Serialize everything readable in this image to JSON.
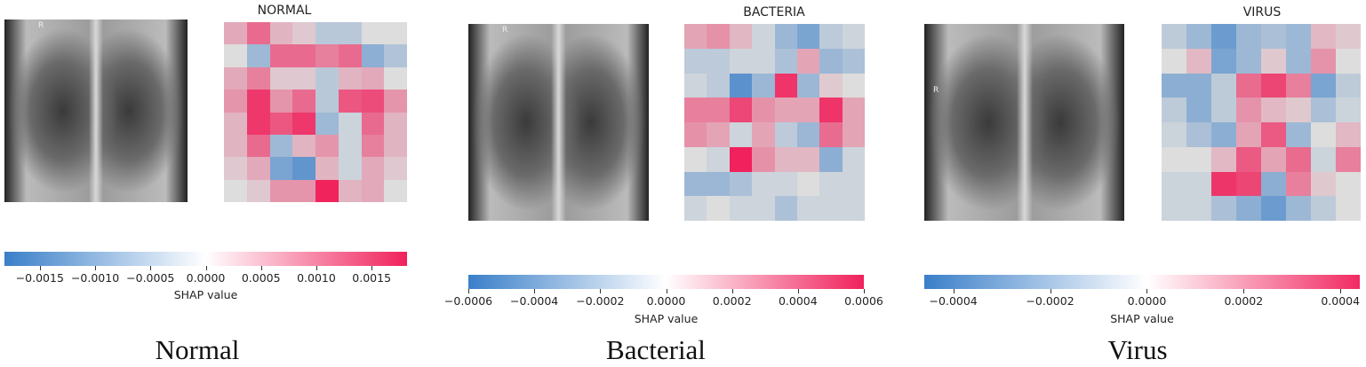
{
  "colors": {
    "negative": "#3a7fc9",
    "zero": "#ffffff",
    "positive": "#f0215c"
  },
  "panels": [
    {
      "title": "NORMAL",
      "caption": "Normal",
      "colorbar_label": "SHAP value",
      "range": [
        -0.00182,
        0.00182
      ],
      "ticks": [
        "−0.0015",
        "−0.0010",
        "−0.0005",
        "0.0000",
        "0.0005",
        "0.0010",
        "0.0015"
      ],
      "tick_values": [
        -0.0015,
        -0.001,
        -0.0005,
        0,
        0.0005,
        0.001,
        0.0015
      ],
      "xray_marker": "R",
      "values": [
        [
          0.0005,
          0.0011,
          0.0004,
          0.0002,
          -0.0004,
          -0.0004,
          0,
          0
        ],
        [
          0,
          -0.0007,
          0.0011,
          0.0011,
          0.0009,
          0.0011,
          -0.0009,
          -0.0005
        ],
        [
          0.0005,
          0.0009,
          0.0002,
          0.0002,
          -0.0004,
          0.0004,
          0.0005,
          0
        ],
        [
          0.0007,
          0.0016,
          0.0007,
          0.0011,
          -0.0004,
          0.0013,
          0.0014,
          0.0007
        ],
        [
          0.0004,
          0.0016,
          0.0013,
          0.0016,
          -0.0007,
          -0.0002,
          0.0011,
          0.0004
        ],
        [
          0.0004,
          0.0011,
          -0.0007,
          0.0004,
          0.0007,
          -0.0002,
          0.0009,
          0.0004
        ],
        [
          0.0002,
          0.0005,
          -0.0011,
          -0.0014,
          0.0004,
          -0.0002,
          0.0005,
          0.0002
        ],
        [
          0,
          0.0002,
          0.0007,
          0.0007,
          0.0018,
          0.0004,
          0.0005,
          0
        ]
      ]
    },
    {
      "title": "BACTERIA",
      "caption": "Bacterial",
      "colorbar_label": "SHAP value",
      "range": [
        -0.0006,
        0.0006
      ],
      "ticks": [
        "−0.0006",
        "−0.0004",
        "−0.0002",
        "0.0000",
        "0.0002",
        "0.0004",
        "0.0006"
      ],
      "tick_values": [
        -0.0006,
        -0.0004,
        -0.0002,
        0,
        0.0002,
        0.0004,
        0.0006
      ],
      "xray_marker": "R",
      "values": [
        [
          0.00018,
          0.00024,
          0.00012,
          -6e-05,
          -0.00024,
          -0.00036,
          -0.00012,
          -6e-05
        ],
        [
          -0.00012,
          -0.00012,
          -6e-05,
          -6e-05,
          -0.00018,
          0.00018,
          -0.00024,
          -0.00018
        ],
        [
          -6e-05,
          -0.00012,
          -0.00048,
          -0.00024,
          0.00054,
          -0.00024,
          6e-05,
          0
        ],
        [
          0.0003,
          0.0003,
          0.00048,
          0.00024,
          0.00018,
          0.00018,
          0.00054,
          0.00018
        ],
        [
          0.00024,
          0.00018,
          -6e-05,
          0.00018,
          -0.00012,
          -0.00024,
          0.00036,
          0.00018
        ],
        [
          0,
          -6e-05,
          0.0006,
          0.00024,
          0.00012,
          0.00012,
          -0.0003,
          -6e-05
        ],
        [
          -0.00024,
          -0.00024,
          -0.00018,
          -6e-05,
          -6e-05,
          0,
          -6e-05,
          -6e-05
        ],
        [
          -6e-05,
          0,
          -6e-05,
          -6e-05,
          -0.00018,
          -6e-05,
          -6e-05,
          -6e-05
        ]
      ]
    },
    {
      "title": "VIRUS",
      "caption": "Virus",
      "colorbar_label": "SHAP value",
      "range": [
        -0.00046,
        0.00044
      ],
      "ticks": [
        "−0.0004",
        "−0.0002",
        "0.0000",
        "0.0002",
        "0.0004"
      ],
      "tick_values": [
        -0.0004,
        -0.0002,
        0,
        0.0002,
        0.0004
      ],
      "xray_marker": "R",
      "values": [
        [
          -9e-05,
          -0.00018,
          -0.00032,
          -0.00018,
          -0.00014,
          -0.00018,
          9e-05,
          5e-05
        ],
        [
          0,
          9e-05,
          -0.00028,
          -0.00018,
          5e-05,
          -0.00018,
          0.00018,
          0
        ],
        [
          -0.00023,
          -0.00023,
          -9e-05,
          0.00028,
          0.00037,
          0.00023,
          -0.00028,
          -9e-05
        ],
        [
          -9e-05,
          -0.00023,
          -9e-05,
          0.00018,
          9e-05,
          5e-05,
          -0.00014,
          -5e-05
        ],
        [
          -5e-05,
          -0.00014,
          -0.00023,
          0.00014,
          0.00032,
          -0.00018,
          0,
          9e-05
        ],
        [
          0,
          0,
          9e-05,
          0.00032,
          0.00014,
          0.00028,
          -5e-05,
          0.00023
        ],
        [
          -5e-05,
          -5e-05,
          0.00041,
          0.00037,
          -0.00023,
          0.00023,
          5e-05,
          0
        ],
        [
          -5e-05,
          -5e-05,
          -0.00014,
          -0.00023,
          -0.00032,
          -0.00018,
          -9e-05,
          0
        ]
      ]
    }
  ]
}
